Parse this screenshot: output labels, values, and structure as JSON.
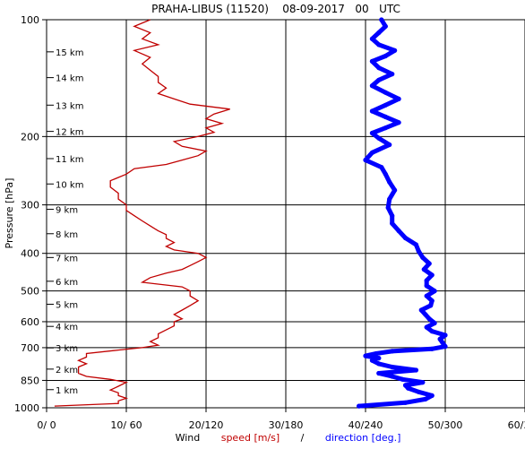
{
  "chart_data": {
    "type": "line",
    "title": "PRAHA-LIBUS (11520)    08-09-2017   00   UTC",
    "ylabel": "Pressure [hPa]",
    "xlabel": {
      "prefix": "Wind",
      "speed": "speed [m/s]",
      "sep": "/",
      "direction": "direction [deg.]"
    },
    "y_scale": "log",
    "ylim": [
      1000,
      100
    ],
    "y_ticks": [
      1000,
      850,
      700,
      600,
      500,
      400,
      300,
      200,
      100
    ],
    "y_tick_labels": [
      "1000",
      "850",
      "700",
      "600",
      "500",
      "400",
      "300",
      "200",
      "100"
    ],
    "xlim_speed": [
      0,
      60
    ],
    "xlim_direction": [
      0,
      360
    ],
    "x_tick_labels": [
      "0/  0",
      "10/ 60",
      "20/120",
      "30/180",
      "40/240",
      "50/300",
      "60/360"
    ],
    "x_ticks_speed": [
      0,
      10,
      20,
      30,
      40,
      50,
      60
    ],
    "height_labels": [
      {
        "label": "1 km",
        "p": 898
      },
      {
        "label": "2 km",
        "p": 795
      },
      {
        "label": "3 km",
        "p": 701
      },
      {
        "label": "4 km",
        "p": 617
      },
      {
        "label": "5 km",
        "p": 541
      },
      {
        "label": "6 km",
        "p": 472
      },
      {
        "label": "7 km",
        "p": 410
      },
      {
        "label": "8 km",
        "p": 356
      },
      {
        "label": "9 km",
        "p": 308
      },
      {
        "label": "10 km",
        "p": 265
      },
      {
        "label": "11 km",
        "p": 228
      },
      {
        "label": "12 km",
        "p": 194
      },
      {
        "label": "13 km",
        "p": 166
      },
      {
        "label": "14 km",
        "p": 141
      },
      {
        "label": "15 km",
        "p": 121
      }
    ],
    "series": [
      {
        "name": "speed",
        "unit": "m/s",
        "color": "#c00000",
        "style": "line",
        "p": [
          990,
          975,
          960,
          945,
          930,
          915,
          900,
          880,
          860,
          845,
          830,
          815,
          800,
          785,
          770,
          755,
          740,
          725,
          710,
          700,
          690,
          675,
          660,
          645,
          630,
          615,
          600,
          590,
          575,
          560,
          545,
          530,
          515,
          500,
          488,
          475,
          462,
          450,
          440,
          430,
          420,
          410,
          400,
          392,
          384,
          375,
          366,
          358,
          350,
          340,
          330,
          320,
          310,
          300,
          290,
          280,
          270,
          260,
          250,
          242,
          236,
          230,
          224,
          218,
          212,
          206,
          200,
          195,
          190,
          185,
          180,
          175,
          170,
          165,
          160,
          155,
          150,
          145,
          140,
          135,
          130,
          125,
          120,
          116,
          112,
          108,
          104,
          100
        ],
        "values": [
          1,
          9,
          9,
          10,
          9,
          9,
          8,
          9,
          10,
          8,
          5,
          4,
          4,
          4,
          5,
          4,
          5,
          5,
          9,
          12,
          14,
          13,
          14,
          14,
          15,
          16,
          16,
          17,
          16,
          17,
          18,
          19,
          18,
          18,
          17,
          12,
          13,
          15,
          17,
          18,
          19,
          20,
          19,
          16,
          15,
          16,
          15,
          15,
          14,
          13,
          12,
          11,
          10,
          10,
          9,
          9,
          8,
          8,
          10,
          11,
          15,
          17,
          19,
          20,
          17,
          16,
          19,
          21,
          20,
          22,
          20,
          21,
          23,
          18,
          16,
          14,
          15,
          14,
          14,
          13,
          12,
          13,
          11,
          14,
          12,
          13,
          11,
          13
        ]
      },
      {
        "name": "direction",
        "unit": "deg",
        "color": "#0000ff",
        "style": "dots",
        "p": [
          990,
          970,
          950,
          930,
          910,
          890,
          875,
          860,
          845,
          830,
          815,
          800,
          785,
          770,
          755,
          745,
          735,
          725,
          715,
          705,
          695,
          680,
          665,
          650,
          635,
          620,
          605,
          590,
          575,
          560,
          545,
          530,
          515,
          500,
          485,
          470,
          455,
          440,
          425,
          410,
          395,
          380,
          365,
          350,
          335,
          320,
          305,
          290,
          275,
          262,
          250,
          240,
          230,
          220,
          210,
          202,
          196,
          190,
          184,
          178,
          172,
          166,
          160,
          154,
          148,
          143,
          138,
          133,
          128,
          124,
          120,
          116,
          112,
          108,
          104,
          100
        ],
        "values": [
          235,
          270,
          285,
          290,
          280,
          272,
          270,
          283,
          268,
          260,
          250,
          278,
          260,
          250,
          245,
          250,
          240,
          248,
          260,
          290,
          300,
          298,
          296,
          300,
          290,
          286,
          292,
          288,
          285,
          282,
          289,
          290,
          286,
          292,
          286,
          286,
          290,
          284,
          288,
          283,
          280,
          278,
          270,
          265,
          260,
          260,
          257,
          258,
          262,
          258,
          255,
          252,
          240,
          245,
          258,
          250,
          245,
          255,
          265,
          255,
          245,
          255,
          265,
          255,
          245,
          250,
          260,
          250,
          245,
          255,
          262,
          250,
          245,
          250,
          255,
          252
        ]
      }
    ],
    "grid": true
  }
}
